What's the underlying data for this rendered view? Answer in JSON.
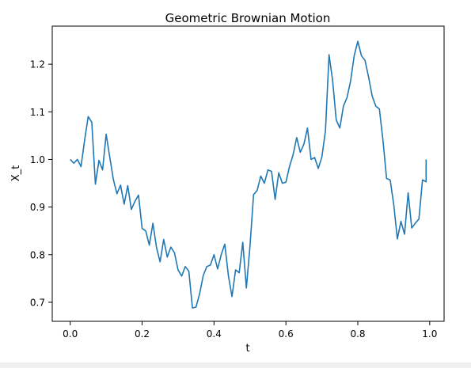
{
  "chart_data": {
    "type": "line",
    "title": "Geometric Brownian Motion",
    "xlabel": "t",
    "ylabel": "X_t",
    "xlim": [
      -0.05,
      1.04
    ],
    "ylim": [
      0.66,
      1.28
    ],
    "xticks": [
      0.0,
      0.2,
      0.4,
      0.6,
      0.8,
      1.0
    ],
    "xtick_labels": [
      "0.0",
      "0.2",
      "0.4",
      "0.6",
      "0.8",
      "1.0"
    ],
    "yticks": [
      0.7,
      0.8,
      0.9,
      1.0,
      1.1,
      1.2
    ],
    "ytick_labels": [
      "0.7",
      "0.8",
      "0.9",
      "1.0",
      "1.1",
      "1.2"
    ],
    "grid": false,
    "line_color": "#1f77b4",
    "x": [
      0.0,
      0.01,
      0.02,
      0.03,
      0.04,
      0.05,
      0.06,
      0.07,
      0.08,
      0.09,
      0.1,
      0.11,
      0.12,
      0.13,
      0.14,
      0.15,
      0.16,
      0.17,
      0.18,
      0.19,
      0.2,
      0.21,
      0.22,
      0.23,
      0.24,
      0.25,
      0.26,
      0.27,
      0.28,
      0.29,
      0.3,
      0.31,
      0.32,
      0.33,
      0.34,
      0.35,
      0.36,
      0.37,
      0.38,
      0.39,
      0.4,
      0.41,
      0.42,
      0.43,
      0.44,
      0.45,
      0.46,
      0.47,
      0.48,
      0.49,
      0.5,
      0.51,
      0.52,
      0.53,
      0.54,
      0.55,
      0.56,
      0.57,
      0.58,
      0.59,
      0.6,
      0.61,
      0.62,
      0.63,
      0.64,
      0.65,
      0.66,
      0.67,
      0.68,
      0.69,
      0.7,
      0.71,
      0.72,
      0.73,
      0.74,
      0.75,
      0.76,
      0.77,
      0.78,
      0.79,
      0.8,
      0.81,
      0.82,
      0.83,
      0.84,
      0.85,
      0.86,
      0.87,
      0.88,
      0.89,
      0.9,
      0.91,
      0.92,
      0.93,
      0.94,
      0.95,
      0.96,
      0.97,
      0.98,
      0.99,
      0.99
    ],
    "y": [
      1.0,
      0.992,
      1.0,
      0.985,
      1.04,
      1.09,
      1.078,
      0.948,
      0.998,
      0.978,
      1.053,
      1.005,
      0.958,
      0.928,
      0.946,
      0.906,
      0.945,
      0.895,
      0.912,
      0.925,
      0.855,
      0.85,
      0.82,
      0.866,
      0.815,
      0.785,
      0.832,
      0.795,
      0.816,
      0.804,
      0.768,
      0.755,
      0.775,
      0.765,
      0.688,
      0.69,
      0.718,
      0.756,
      0.775,
      0.778,
      0.8,
      0.77,
      0.8,
      0.822,
      0.756,
      0.712,
      0.768,
      0.762,
      0.826,
      0.73,
      0.817,
      0.926,
      0.935,
      0.965,
      0.95,
      0.978,
      0.975,
      0.916,
      0.972,
      0.95,
      0.952,
      0.985,
      1.01,
      1.046,
      1.015,
      1.032,
      1.066,
      1.0,
      1.004,
      0.981,
      1.005,
      1.06,
      1.22,
      1.165,
      1.083,
      1.066,
      1.112,
      1.13,
      1.165,
      1.218,
      1.248,
      1.218,
      1.208,
      1.173,
      1.133,
      1.112,
      1.106,
      1.04,
      0.96,
      0.957,
      0.905,
      0.833,
      0.87,
      0.843,
      0.93,
      0.856,
      0.866,
      0.875,
      0.957,
      0.953,
      1.0
    ]
  }
}
